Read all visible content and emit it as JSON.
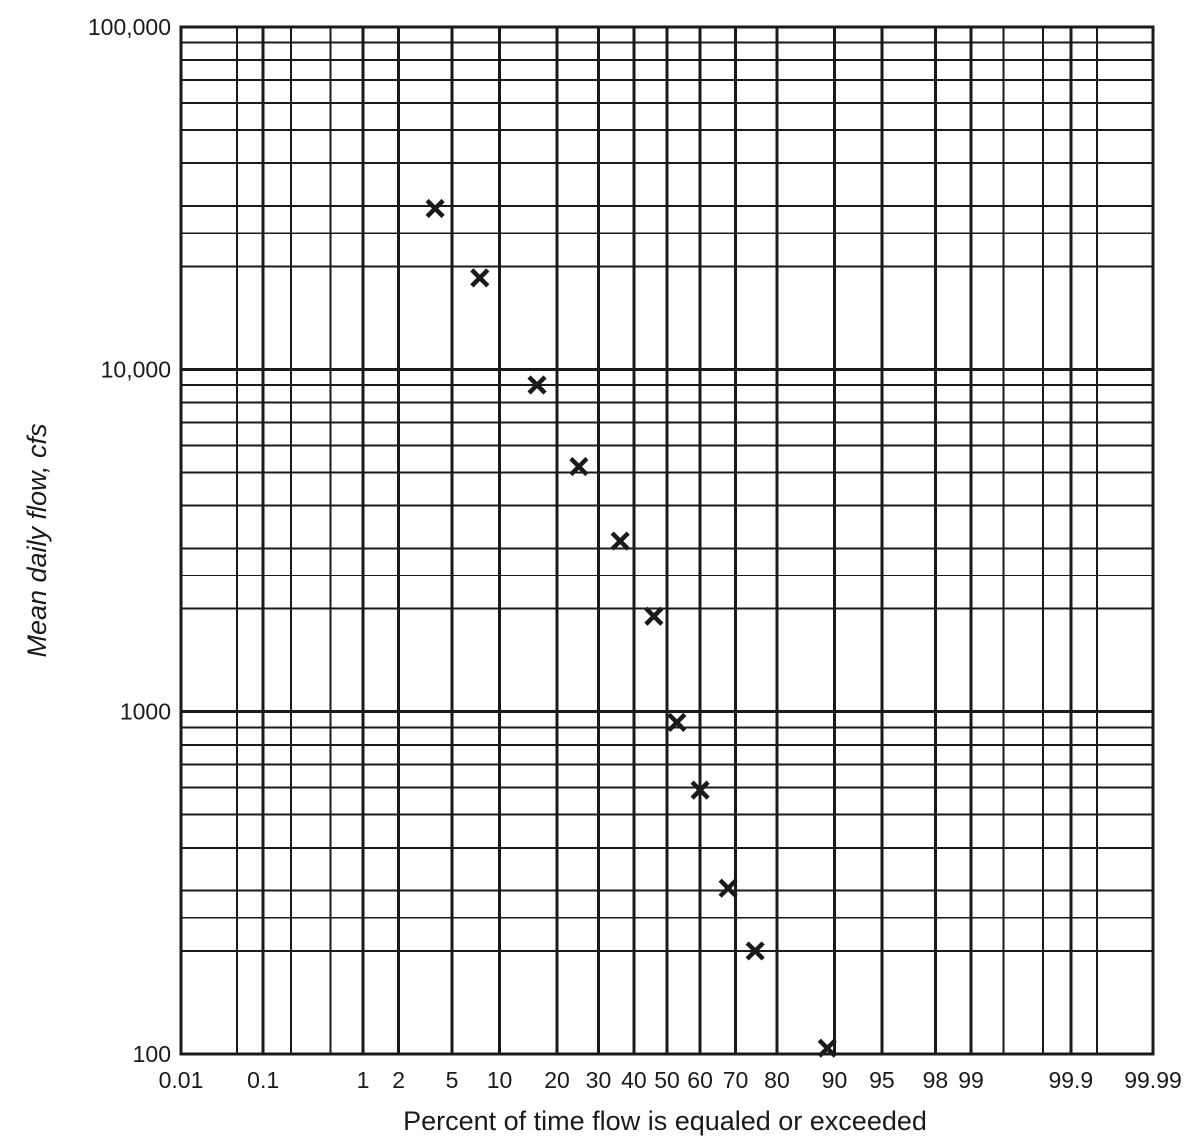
{
  "chart_data": {
    "type": "scatter",
    "title": "",
    "xlabel": "Percent of time flow is equaled or exceeded",
    "ylabel": "Mean daily flow, cfs",
    "x_scale": "probability",
    "y_scale": "log",
    "ylim": [
      100,
      100000
    ],
    "x_ticks": [
      0.01,
      0.1,
      1,
      2,
      5,
      10,
      20,
      30,
      40,
      50,
      60,
      70,
      80,
      90,
      95,
      98,
      99,
      99.9,
      99.99
    ],
    "x_tick_labels": [
      "0.01",
      "0.1",
      "1",
      "2",
      "5",
      "10",
      "20",
      "30",
      "40",
      "50",
      "60",
      "70",
      "80",
      "90",
      "95",
      "98",
      "99",
      "99.9",
      "99.99"
    ],
    "y_ticks": [
      100,
      1000,
      10000,
      100000
    ],
    "y_tick_labels": [
      "100",
      "1000",
      "10,000",
      "100,000"
    ],
    "grid": true,
    "marker": "x",
    "points": [
      {
        "x": 3.8,
        "y": 29500
      },
      {
        "x": 7.6,
        "y": 18500
      },
      {
        "x": 16,
        "y": 9000
      },
      {
        "x": 25,
        "y": 5200
      },
      {
        "x": 36,
        "y": 3150
      },
      {
        "x": 46,
        "y": 1900
      },
      {
        "x": 53,
        "y": 930
      },
      {
        "x": 60,
        "y": 590
      },
      {
        "x": 68,
        "y": 305
      },
      {
        "x": 75,
        "y": 200
      },
      {
        "x": 89,
        "y": 104
      }
    ]
  }
}
